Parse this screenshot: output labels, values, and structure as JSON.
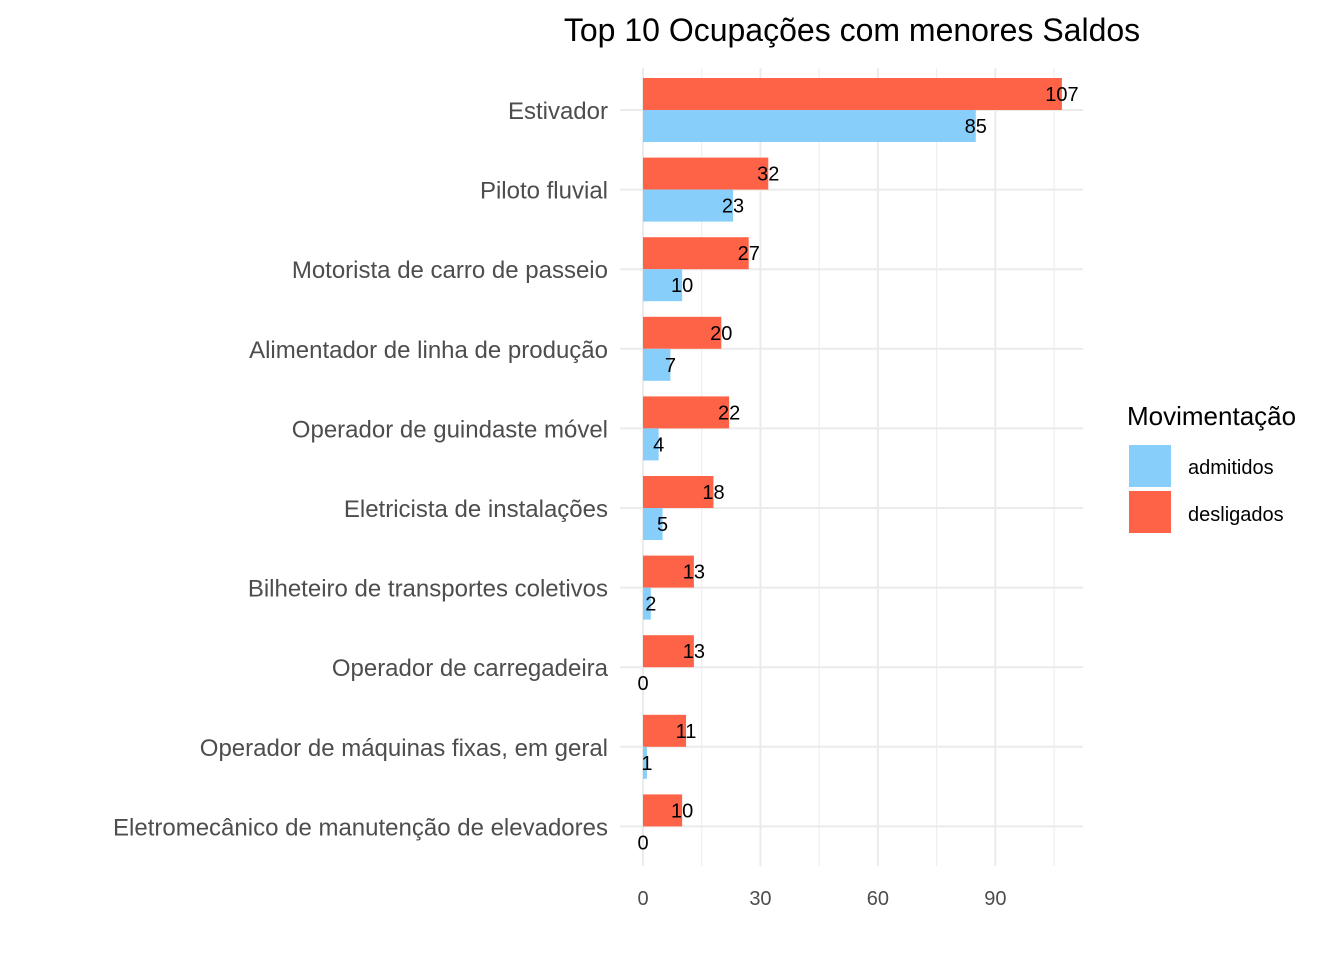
{
  "chart_data": {
    "type": "bar",
    "orientation": "horizontal",
    "title": "Top 10 Ocupações com menores Saldos",
    "xlabel": "",
    "ylabel": "",
    "categories": [
      "Estivador",
      "Piloto fluvial",
      "Motorista de carro de passeio",
      "Alimentador de linha de produção",
      "Operador de guindaste móvel",
      "Eletricista de instalações",
      "Bilheteiro de transportes coletivos",
      "Operador de carregadeira",
      "Operador de máquinas fixas, em geral",
      "Eletromecânico de manutenção de elevadores"
    ],
    "series": [
      {
        "name": "admitidos",
        "color": "#87CEFA",
        "values": [
          85,
          23,
          10,
          7,
          4,
          5,
          2,
          0,
          1,
          0
        ]
      },
      {
        "name": "desligados",
        "color": "#FF6347",
        "values": [
          107,
          32,
          27,
          20,
          22,
          18,
          13,
          13,
          11,
          10
        ]
      }
    ],
    "xticks": [
      "0",
      "30",
      "60",
      "90"
    ],
    "xlim": [
      0,
      112
    ],
    "grid": true,
    "legend": {
      "title": "Movimentação",
      "position": "right"
    }
  }
}
